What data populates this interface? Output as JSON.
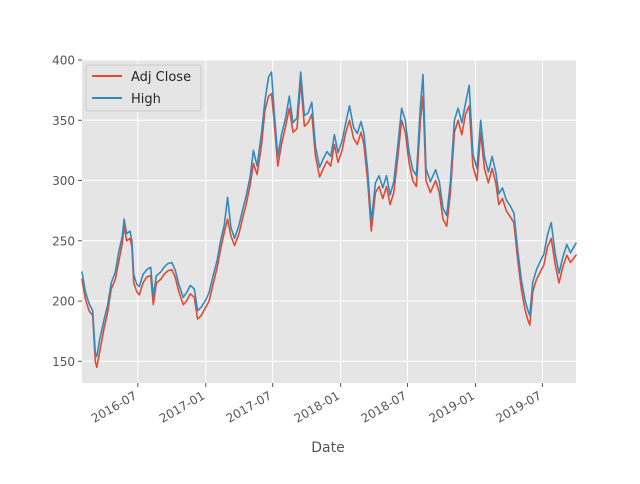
{
  "chart_data": {
    "type": "line",
    "xlabel": "Date",
    "ylabel": "",
    "xlim": [
      "2016-02-01",
      "2019-09-30"
    ],
    "ylim": [
      132,
      400
    ],
    "yticks": [
      150,
      200,
      250,
      300,
      350,
      400
    ],
    "xticks": [
      {
        "date": "2016-07-01",
        "label": "2016-07"
      },
      {
        "date": "2017-01-01",
        "label": "2017-01"
      },
      {
        "date": "2017-07-01",
        "label": "2017-07"
      },
      {
        "date": "2018-01-01",
        "label": "2018-01"
      },
      {
        "date": "2018-07-01",
        "label": "2018-07"
      },
      {
        "date": "2019-01-01",
        "label": "2019-01"
      },
      {
        "date": "2019-07-01",
        "label": "2019-07"
      }
    ],
    "grid": true,
    "legend_position": "top-left",
    "colors": {
      "adj_close": "#E24A33",
      "high": "#348ABD",
      "plot_bg": "#E5E5E5",
      "grid": "#FFFFFF"
    },
    "series": [
      {
        "name": "Adj Close",
        "color": "#E24A33",
        "points": [
          [
            "2016-02-01",
            218
          ],
          [
            "2016-02-10",
            202
          ],
          [
            "2016-02-20",
            192
          ],
          [
            "2016-03-01",
            188
          ],
          [
            "2016-03-08",
            150
          ],
          [
            "2016-03-12",
            145
          ],
          [
            "2016-03-20",
            158
          ],
          [
            "2016-04-01",
            178
          ],
          [
            "2016-04-10",
            190
          ],
          [
            "2016-04-20",
            210
          ],
          [
            "2016-05-01",
            218
          ],
          [
            "2016-05-10",
            232
          ],
          [
            "2016-05-20",
            248
          ],
          [
            "2016-05-25",
            262
          ],
          [
            "2016-06-01",
            250
          ],
          [
            "2016-06-10",
            252
          ],
          [
            "2016-06-15",
            245
          ],
          [
            "2016-06-20",
            215
          ],
          [
            "2016-06-28",
            208
          ],
          [
            "2016-07-05",
            205
          ],
          [
            "2016-07-15",
            215
          ],
          [
            "2016-07-25",
            220
          ],
          [
            "2016-08-05",
            221
          ],
          [
            "2016-08-12",
            197
          ],
          [
            "2016-08-20",
            215
          ],
          [
            "2016-09-01",
            218
          ],
          [
            "2016-09-10",
            222
          ],
          [
            "2016-09-20",
            225
          ],
          [
            "2016-10-01",
            226
          ],
          [
            "2016-10-10",
            220
          ],
          [
            "2016-10-20",
            208
          ],
          [
            "2016-11-01",
            197
          ],
          [
            "2016-11-10",
            200
          ],
          [
            "2016-11-20",
            206
          ],
          [
            "2016-12-01",
            203
          ],
          [
            "2016-12-10",
            185
          ],
          [
            "2016-12-20",
            188
          ],
          [
            "2017-01-01",
            195
          ],
          [
            "2017-01-10",
            200
          ],
          [
            "2017-01-20",
            213
          ],
          [
            "2017-02-01",
            228
          ],
          [
            "2017-02-10",
            243
          ],
          [
            "2017-02-20",
            257
          ],
          [
            "2017-03-01",
            268
          ],
          [
            "2017-03-10",
            254
          ],
          [
            "2017-03-20",
            246
          ],
          [
            "2017-04-01",
            256
          ],
          [
            "2017-04-10",
            268
          ],
          [
            "2017-04-20",
            280
          ],
          [
            "2017-05-01",
            296
          ],
          [
            "2017-05-10",
            314
          ],
          [
            "2017-05-20",
            305
          ],
          [
            "2017-06-01",
            330
          ],
          [
            "2017-06-10",
            358
          ],
          [
            "2017-06-20",
            370
          ],
          [
            "2017-06-28",
            372
          ],
          [
            "2017-07-05",
            350
          ],
          [
            "2017-07-15",
            312
          ],
          [
            "2017-07-25",
            330
          ],
          [
            "2017-08-05",
            345
          ],
          [
            "2017-08-15",
            360
          ],
          [
            "2017-08-25",
            340
          ],
          [
            "2017-09-05",
            343
          ],
          [
            "2017-09-15",
            382
          ],
          [
            "2017-09-25",
            345
          ],
          [
            "2017-10-05",
            348
          ],
          [
            "2017-10-15",
            355
          ],
          [
            "2017-10-25",
            320
          ],
          [
            "2017-11-05",
            303
          ],
          [
            "2017-11-15",
            310
          ],
          [
            "2017-11-25",
            316
          ],
          [
            "2017-12-05",
            312
          ],
          [
            "2017-12-15",
            330
          ],
          [
            "2017-12-25",
            315
          ],
          [
            "2018-01-05",
            325
          ],
          [
            "2018-01-15",
            340
          ],
          [
            "2018-01-25",
            350
          ],
          [
            "2018-02-05",
            335
          ],
          [
            "2018-02-15",
            330
          ],
          [
            "2018-02-25",
            340
          ],
          [
            "2018-03-05",
            330
          ],
          [
            "2018-03-15",
            300
          ],
          [
            "2018-03-25",
            258
          ],
          [
            "2018-04-05",
            290
          ],
          [
            "2018-04-15",
            295
          ],
          [
            "2018-04-25",
            285
          ],
          [
            "2018-05-05",
            295
          ],
          [
            "2018-05-15",
            280
          ],
          [
            "2018-05-25",
            290
          ],
          [
            "2018-06-05",
            320
          ],
          [
            "2018-06-15",
            350
          ],
          [
            "2018-06-25",
            340
          ],
          [
            "2018-07-05",
            315
          ],
          [
            "2018-07-15",
            300
          ],
          [
            "2018-07-25",
            295
          ],
          [
            "2018-08-05",
            350
          ],
          [
            "2018-08-12",
            370
          ],
          [
            "2018-08-20",
            300
          ],
          [
            "2018-09-01",
            290
          ],
          [
            "2018-09-15",
            300
          ],
          [
            "2018-09-25",
            290
          ],
          [
            "2018-10-05",
            268
          ],
          [
            "2018-10-15",
            262
          ],
          [
            "2018-10-25",
            290
          ],
          [
            "2018-11-05",
            340
          ],
          [
            "2018-11-15",
            350
          ],
          [
            "2018-11-25",
            338
          ],
          [
            "2018-12-05",
            355
          ],
          [
            "2018-12-15",
            362
          ],
          [
            "2018-12-25",
            312
          ],
          [
            "2019-01-05",
            300
          ],
          [
            "2019-01-15",
            340
          ],
          [
            "2019-01-25",
            310
          ],
          [
            "2019-02-05",
            298
          ],
          [
            "2019-02-15",
            310
          ],
          [
            "2019-02-25",
            298
          ],
          [
            "2019-03-05",
            280
          ],
          [
            "2019-03-15",
            285
          ],
          [
            "2019-03-25",
            275
          ],
          [
            "2019-04-05",
            270
          ],
          [
            "2019-04-15",
            265
          ],
          [
            "2019-04-25",
            235
          ],
          [
            "2019-05-05",
            210
          ],
          [
            "2019-05-15",
            193
          ],
          [
            "2019-05-22",
            185
          ],
          [
            "2019-05-28",
            180
          ],
          [
            "2019-06-05",
            208
          ],
          [
            "2019-06-15",
            218
          ],
          [
            "2019-06-25",
            224
          ],
          [
            "2019-07-05",
            230
          ],
          [
            "2019-07-15",
            245
          ],
          [
            "2019-07-25",
            252
          ],
          [
            "2019-08-05",
            230
          ],
          [
            "2019-08-15",
            215
          ],
          [
            "2019-08-25",
            228
          ],
          [
            "2019-09-05",
            238
          ],
          [
            "2019-09-15",
            232
          ],
          [
            "2019-09-30",
            238
          ]
        ]
      },
      {
        "name": "High",
        "color": "#348ABD",
        "points": [
          [
            "2016-02-01",
            224
          ],
          [
            "2016-02-10",
            208
          ],
          [
            "2016-02-20",
            198
          ],
          [
            "2016-03-01",
            192
          ],
          [
            "2016-03-08",
            157
          ],
          [
            "2016-03-12",
            154
          ],
          [
            "2016-03-20",
            168
          ],
          [
            "2016-04-01",
            185
          ],
          [
            "2016-04-10",
            196
          ],
          [
            "2016-04-20",
            215
          ],
          [
            "2016-05-01",
            224
          ],
          [
            "2016-05-10",
            240
          ],
          [
            "2016-05-20",
            254
          ],
          [
            "2016-05-25",
            268
          ],
          [
            "2016-06-01",
            256
          ],
          [
            "2016-06-10",
            258
          ],
          [
            "2016-06-15",
            250
          ],
          [
            "2016-06-20",
            222
          ],
          [
            "2016-06-28",
            214
          ],
          [
            "2016-07-05",
            212
          ],
          [
            "2016-07-15",
            222
          ],
          [
            "2016-07-25",
            226
          ],
          [
            "2016-08-05",
            228
          ],
          [
            "2016-08-12",
            204
          ],
          [
            "2016-08-20",
            221
          ],
          [
            "2016-09-01",
            224
          ],
          [
            "2016-09-10",
            228
          ],
          [
            "2016-09-20",
            231
          ],
          [
            "2016-10-01",
            232
          ],
          [
            "2016-10-10",
            226
          ],
          [
            "2016-10-20",
            214
          ],
          [
            "2016-11-01",
            203
          ],
          [
            "2016-11-10",
            207
          ],
          [
            "2016-11-20",
            213
          ],
          [
            "2016-12-01",
            210
          ],
          [
            "2016-12-10",
            192
          ],
          [
            "2016-12-20",
            195
          ],
          [
            "2017-01-01",
            201
          ],
          [
            "2017-01-10",
            207
          ],
          [
            "2017-01-20",
            220
          ],
          [
            "2017-02-01",
            234
          ],
          [
            "2017-02-10",
            250
          ],
          [
            "2017-02-20",
            263
          ],
          [
            "2017-03-01",
            286
          ],
          [
            "2017-03-10",
            261
          ],
          [
            "2017-03-20",
            252
          ],
          [
            "2017-04-01",
            263
          ],
          [
            "2017-04-10",
            275
          ],
          [
            "2017-04-20",
            287
          ],
          [
            "2017-05-01",
            303
          ],
          [
            "2017-05-10",
            325
          ],
          [
            "2017-05-20",
            312
          ],
          [
            "2017-06-01",
            340
          ],
          [
            "2017-06-10",
            366
          ],
          [
            "2017-06-20",
            386
          ],
          [
            "2017-06-28",
            390
          ],
          [
            "2017-07-05",
            358
          ],
          [
            "2017-07-15",
            320
          ],
          [
            "2017-07-25",
            338
          ],
          [
            "2017-08-05",
            352
          ],
          [
            "2017-08-15",
            370
          ],
          [
            "2017-08-25",
            348
          ],
          [
            "2017-09-05",
            352
          ],
          [
            "2017-09-15",
            390
          ],
          [
            "2017-09-25",
            354
          ],
          [
            "2017-10-05",
            356
          ],
          [
            "2017-10-15",
            365
          ],
          [
            "2017-10-25",
            328
          ],
          [
            "2017-11-05",
            311
          ],
          [
            "2017-11-15",
            318
          ],
          [
            "2017-11-25",
            324
          ],
          [
            "2017-12-05",
            320
          ],
          [
            "2017-12-15",
            338
          ],
          [
            "2017-12-25",
            323
          ],
          [
            "2018-01-05",
            333
          ],
          [
            "2018-01-15",
            348
          ],
          [
            "2018-01-25",
            362
          ],
          [
            "2018-02-05",
            344
          ],
          [
            "2018-02-15",
            339
          ],
          [
            "2018-02-25",
            349
          ],
          [
            "2018-03-05",
            339
          ],
          [
            "2018-03-15",
            309
          ],
          [
            "2018-03-25",
            266
          ],
          [
            "2018-04-05",
            298
          ],
          [
            "2018-04-15",
            304
          ],
          [
            "2018-04-25",
            294
          ],
          [
            "2018-05-05",
            304
          ],
          [
            "2018-05-15",
            288
          ],
          [
            "2018-05-25",
            299
          ],
          [
            "2018-06-05",
            330
          ],
          [
            "2018-06-15",
            360
          ],
          [
            "2018-06-25",
            350
          ],
          [
            "2018-07-05",
            324
          ],
          [
            "2018-07-15",
            309
          ],
          [
            "2018-07-25",
            304
          ],
          [
            "2018-08-05",
            362
          ],
          [
            "2018-08-12",
            388
          ],
          [
            "2018-08-20",
            310
          ],
          [
            "2018-09-01",
            299
          ],
          [
            "2018-09-15",
            309
          ],
          [
            "2018-09-25",
            299
          ],
          [
            "2018-10-05",
            277
          ],
          [
            "2018-10-15",
            271
          ],
          [
            "2018-10-25",
            299
          ],
          [
            "2018-11-05",
            350
          ],
          [
            "2018-11-15",
            360
          ],
          [
            "2018-11-25",
            348
          ],
          [
            "2018-12-05",
            364
          ],
          [
            "2018-12-15",
            379
          ],
          [
            "2018-12-25",
            322
          ],
          [
            "2019-01-05",
            310
          ],
          [
            "2019-01-15",
            350
          ],
          [
            "2019-01-25",
            320
          ],
          [
            "2019-02-05",
            307
          ],
          [
            "2019-02-15",
            320
          ],
          [
            "2019-02-25",
            307
          ],
          [
            "2019-03-05",
            289
          ],
          [
            "2019-03-15",
            294
          ],
          [
            "2019-03-25",
            284
          ],
          [
            "2019-04-05",
            279
          ],
          [
            "2019-04-15",
            273
          ],
          [
            "2019-04-25",
            243
          ],
          [
            "2019-05-05",
            218
          ],
          [
            "2019-05-15",
            201
          ],
          [
            "2019-05-22",
            193
          ],
          [
            "2019-05-28",
            188
          ],
          [
            "2019-06-05",
            216
          ],
          [
            "2019-06-15",
            226
          ],
          [
            "2019-06-25",
            233
          ],
          [
            "2019-07-05",
            239
          ],
          [
            "2019-07-15",
            255
          ],
          [
            "2019-07-25",
            265
          ],
          [
            "2019-08-05",
            239
          ],
          [
            "2019-08-15",
            223
          ],
          [
            "2019-08-25",
            236
          ],
          [
            "2019-09-05",
            247
          ],
          [
            "2019-09-15",
            240
          ],
          [
            "2019-09-30",
            248
          ]
        ]
      }
    ]
  }
}
